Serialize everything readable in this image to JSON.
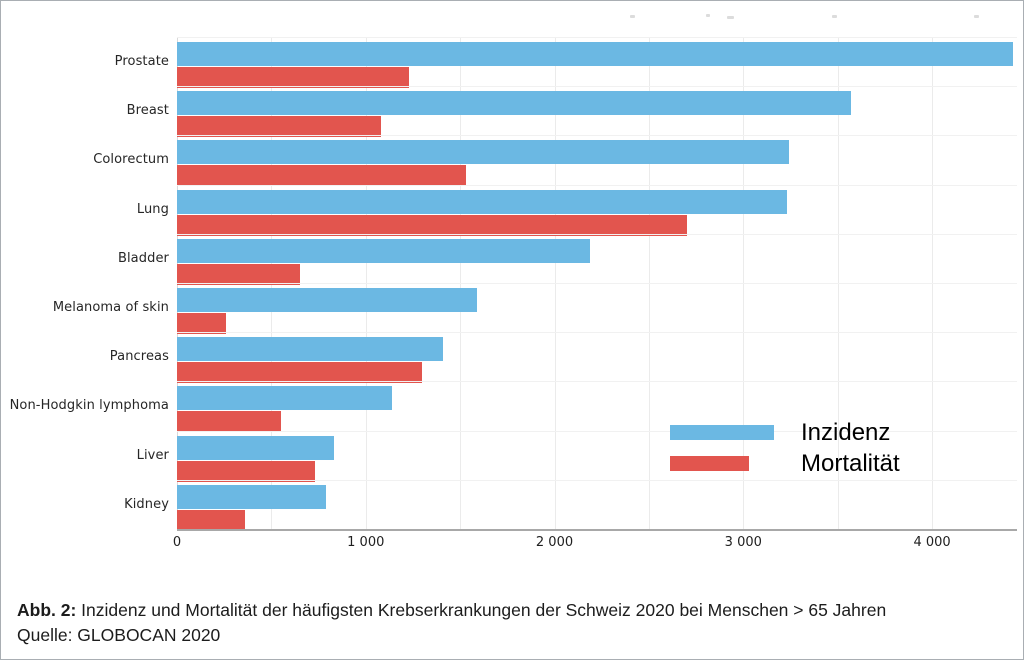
{
  "chart_data": {
    "type": "bar",
    "orientation": "horizontal",
    "title": "",
    "categories": [
      "Prostate",
      "Breast",
      "Colorectum",
      "Lung",
      "Bladder",
      "Melanoma of skin",
      "Pancreas",
      "Non-Hodgkin lymphoma",
      "Liver",
      "Kidney"
    ],
    "series": [
      {
        "name": "Inzidenz",
        "color": "#6bb8e3",
        "values": [
          4430,
          3570,
          3240,
          3230,
          2190,
          1590,
          1410,
          1140,
          830,
          790
        ]
      },
      {
        "name": "Mortalität",
        "color": "#e2554e",
        "values": [
          1230,
          1080,
          1530,
          2700,
          650,
          260,
          1300,
          550,
          730,
          360
        ]
      }
    ],
    "xlabel": "",
    "ylabel": "",
    "xlim": [
      0,
      4450
    ],
    "x_ticks": [
      0,
      1000,
      2000,
      3000,
      4000
    ],
    "x_tick_labels": [
      "0",
      "1 000",
      "2 000",
      "3 000",
      "4 000"
    ],
    "gridline_step": 500,
    "grid": true,
    "legend_position": "inside-right"
  },
  "legend": {
    "items": [
      {
        "label": "Inzidenz",
        "color": "#6bb8e3"
      },
      {
        "label": "Mortalität",
        "color": "#e2554e"
      }
    ]
  },
  "caption": {
    "prefix": "Abb. 2:",
    "line1": " Inzidenz und Mortalität der häufigsten Krebserkrankungen der Schweiz 2020 bei Menschen > 65 Jahren",
    "line2": "Quelle: GLOBOCAN 2020"
  },
  "colors": {
    "incidence": "#6bb8e3",
    "mortality": "#e2554e",
    "gridline": "#ebebeb",
    "axis_line": "#a8a8a8"
  }
}
